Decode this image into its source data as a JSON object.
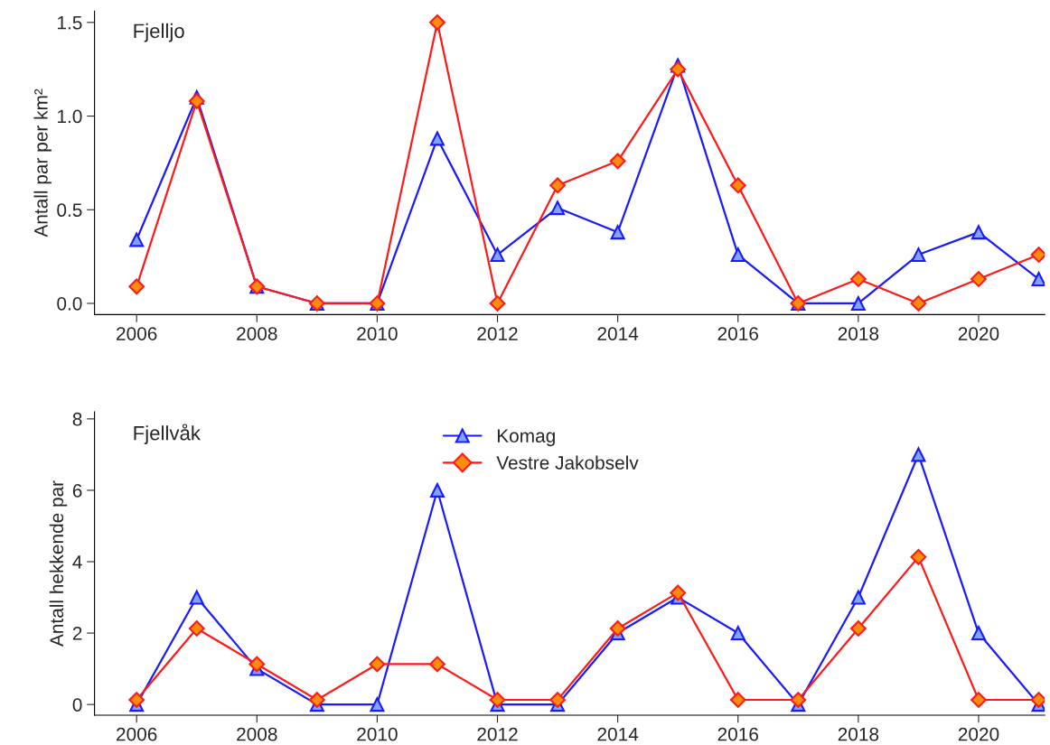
{
  "chart_data": [
    {
      "type": "line",
      "title": "Fjelljo",
      "ylabel": "Antall par per km²",
      "x": [
        2006,
        2007,
        2008,
        2009,
        2010,
        2011,
        2012,
        2013,
        2014,
        2015,
        2016,
        2017,
        2018,
        2019,
        2020,
        2021
      ],
      "xlim": [
        2005.3,
        2021.1
      ],
      "xticks": [
        2006,
        2008,
        2010,
        2012,
        2014,
        2016,
        2018,
        2020
      ],
      "ylim": [
        -0.06,
        1.56
      ],
      "yticks": [
        {
          "value": 0,
          "label": "0.0"
        },
        {
          "value": 0.5,
          "label": "0.5"
        },
        {
          "value": 1,
          "label": "1.0"
        },
        {
          "value": 1.5,
          "label": "1.5"
        }
      ],
      "grid": false,
      "legend": false,
      "series": [
        {
          "color": "#1a1aff",
          "marker": "triangle",
          "values": [
            0.34,
            1.1,
            0.09,
            0,
            0,
            0.88,
            0.26,
            0.51,
            0.38,
            1.27,
            0.26,
            0,
            0,
            0.26,
            0.38,
            0.13
          ]
        },
        {
          "color": "#ff1a1a",
          "marker": "diamond",
          "values": [
            0.09,
            1.08,
            0.09,
            0,
            0,
            1.5,
            0,
            0.63,
            0.76,
            1.25,
            0.63,
            0,
            0.13,
            0,
            0.13,
            0.26
          ]
        }
      ]
    },
    {
      "type": "line",
      "title": "Fjellvåk",
      "ylabel": "Antall hekkende par",
      "x": [
        2006,
        2007,
        2008,
        2009,
        2010,
        2011,
        2012,
        2013,
        2014,
        2015,
        2016,
        2017,
        2018,
        2019,
        2020,
        2021
      ],
      "xlim": [
        2005.3,
        2021.1
      ],
      "xticks": [
        2006,
        2008,
        2010,
        2012,
        2014,
        2016,
        2018,
        2020
      ],
      "ylim": [
        -0.3,
        8.2
      ],
      "yticks": [
        0,
        2,
        4,
        6,
        8
      ],
      "grid": false,
      "legend": "top",
      "series": [
        {
          "name": "Komag",
          "color": "#1a1aff",
          "marker": "triangle",
          "values": [
            0,
            3,
            1,
            0,
            0,
            6,
            0,
            0,
            2,
            3,
            2,
            0,
            3,
            7,
            2,
            0
          ]
        },
        {
          "name": "Vestre Jakobselv",
          "color": "#ff1a1a",
          "marker": "diamond",
          "values": [
            0.13,
            2.13,
            1.13,
            0.13,
            1.13,
            1.13,
            0.13,
            0.13,
            2.13,
            3.13,
            0.13,
            0.13,
            2.13,
            4.13,
            0.13,
            0.13
          ]
        }
      ]
    }
  ]
}
